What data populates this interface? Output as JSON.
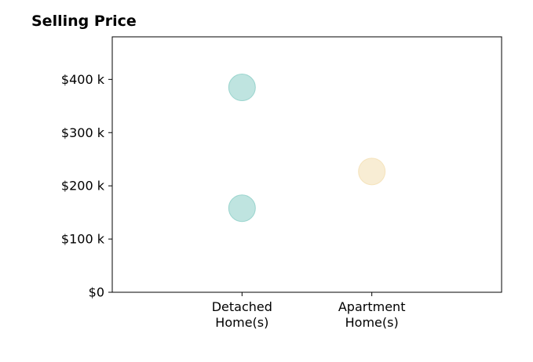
{
  "chart_data": {
    "type": "scatter",
    "title": "Selling Price",
    "xlabel": "",
    "ylabel": "",
    "categories": [
      [
        "Detached",
        "Home(s)"
      ],
      [
        "Apartment",
        "Home(s)"
      ]
    ],
    "xlim": [
      -1,
      2
    ],
    "ylim": [
      0,
      480000
    ],
    "yticks": [
      {
        "value": 0,
        "label": "$0"
      },
      {
        "value": 100000,
        "label": "$100 k"
      },
      {
        "value": 200000,
        "label": "$200 k"
      },
      {
        "value": 300000,
        "label": "$300 k"
      },
      {
        "value": 400000,
        "label": "$400 k"
      }
    ],
    "grid": false,
    "points": [
      {
        "category": 0,
        "y": 385000,
        "color": "#7fc9c1"
      },
      {
        "category": 0,
        "y": 158000,
        "color": "#7fc9c1"
      },
      {
        "category": 1,
        "y": 227000,
        "color": "#f2dcaa"
      }
    ],
    "colors": {
      "detached": "#7fc9c1",
      "apartment": "#f2dcaa",
      "axis": "#000000"
    }
  }
}
